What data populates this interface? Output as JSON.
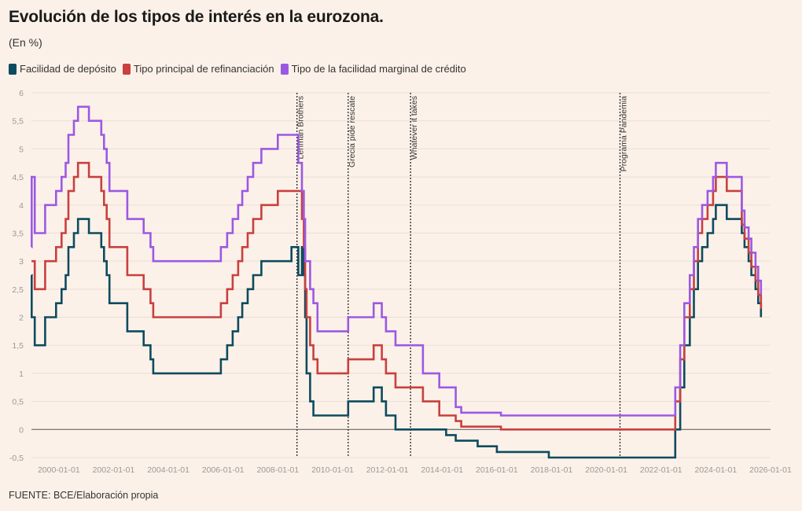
{
  "chart_data": {
    "type": "line",
    "step": true,
    "title": "Evolución de los tipos de interés en la eurozona.",
    "subtitle": "(En %)",
    "source": "FUENTE: BCE/Elaboración propia",
    "xlabel": "",
    "ylabel": "",
    "xlim": [
      1999.0,
      2026.0
    ],
    "ylim": [
      -0.5,
      6
    ],
    "yticks": [
      -0.5,
      0,
      0.5,
      1,
      1.5,
      2,
      2.5,
      3,
      3.5,
      4,
      4.5,
      5,
      5.5,
      6
    ],
    "ytick_labels": [
      "-0,5",
      "0",
      "0,5",
      "1",
      "1,5",
      "2",
      "2,5",
      "3",
      "3,5",
      "4",
      "4,5",
      "5",
      "5,5",
      "6"
    ],
    "xticks": [
      2000,
      2002,
      2004,
      2006,
      2008,
      2010,
      2012,
      2014,
      2016,
      2018,
      2020,
      2022,
      2024,
      2026
    ],
    "xtick_labels": [
      "2000-01-01",
      "2002-01-01",
      "2004-01-01",
      "2006-01-01",
      "2008-01-01",
      "2010-01-01",
      "2012-01-01",
      "2014-01-01",
      "2016-01-01",
      "2018-01-01",
      "2020-01-01",
      "2022-01-01",
      "2024-01-01",
      "2026-01-01"
    ],
    "annotations": [
      {
        "x": 2008.7,
        "label": "Lehman Brothers"
      },
      {
        "x": 2010.57,
        "label": "Grecia pide rescate"
      },
      {
        "x": 2012.85,
        "label": "Whatever it takes"
      },
      {
        "x": 2020.5,
        "label": "Programa Pandemia"
      }
    ],
    "series": [
      {
        "name": "Facilidad de depósito",
        "color": "#0d4b5f",
        "points": [
          [
            1999.0,
            2.75
          ],
          [
            1999.01,
            2.0
          ],
          [
            1999.12,
            1.5
          ],
          [
            1999.5,
            2.0
          ],
          [
            1999.9,
            2.25
          ],
          [
            2000.1,
            2.5
          ],
          [
            2000.25,
            2.75
          ],
          [
            2000.35,
            3.25
          ],
          [
            2000.55,
            3.5
          ],
          [
            2000.7,
            3.75
          ],
          [
            2001.1,
            3.5
          ],
          [
            2001.55,
            3.25
          ],
          [
            2001.65,
            3.0
          ],
          [
            2001.75,
            2.75
          ],
          [
            2001.85,
            2.25
          ],
          [
            2002.5,
            1.75
          ],
          [
            2003.1,
            1.5
          ],
          [
            2003.35,
            1.25
          ],
          [
            2003.45,
            1.0
          ],
          [
            2005.92,
            1.25
          ],
          [
            2006.15,
            1.5
          ],
          [
            2006.35,
            1.75
          ],
          [
            2006.55,
            2.0
          ],
          [
            2006.7,
            2.25
          ],
          [
            2006.9,
            2.5
          ],
          [
            2007.1,
            2.75
          ],
          [
            2007.4,
            3.0
          ],
          [
            2008.5,
            3.25
          ],
          [
            2008.75,
            2.75
          ],
          [
            2008.88,
            3.25
          ],
          [
            2008.95,
            2.75
          ],
          [
            2009.0,
            2.0
          ],
          [
            2009.05,
            1.0
          ],
          [
            2009.18,
            0.5
          ],
          [
            2009.3,
            0.25
          ],
          [
            2010.57,
            0.5
          ],
          [
            2011.5,
            0.75
          ],
          [
            2011.8,
            0.5
          ],
          [
            2011.95,
            0.25
          ],
          [
            2012.3,
            0.0
          ],
          [
            2014.15,
            -0.1
          ],
          [
            2014.5,
            -0.2
          ],
          [
            2015.3,
            -0.3
          ],
          [
            2016.0,
            -0.4
          ],
          [
            2017.9,
            -0.5
          ],
          [
            2021.0,
            -0.5
          ],
          [
            2022.52,
            0.0
          ],
          [
            2022.7,
            0.75
          ],
          [
            2022.85,
            1.5
          ],
          [
            2023.05,
            2.0
          ],
          [
            2023.2,
            2.5
          ],
          [
            2023.35,
            3.0
          ],
          [
            2023.5,
            3.25
          ],
          [
            2023.7,
            3.5
          ],
          [
            2023.9,
            3.75
          ],
          [
            2024.0,
            4.0
          ],
          [
            2024.4,
            3.75
          ],
          [
            2024.95,
            3.5
          ],
          [
            2025.05,
            3.25
          ],
          [
            2025.2,
            3.0
          ],
          [
            2025.3,
            2.75
          ],
          [
            2025.45,
            2.5
          ],
          [
            2025.55,
            2.25
          ],
          [
            2025.65,
            2.0
          ]
        ]
      },
      {
        "name": "Tipo principal de refinanciación",
        "color": "#c8403f",
        "points": [
          [
            1999.0,
            3.0
          ],
          [
            1999.12,
            2.5
          ],
          [
            1999.5,
            3.0
          ],
          [
            1999.9,
            3.25
          ],
          [
            2000.1,
            3.5
          ],
          [
            2000.25,
            3.75
          ],
          [
            2000.35,
            4.25
          ],
          [
            2000.55,
            4.5
          ],
          [
            2000.7,
            4.75
          ],
          [
            2001.1,
            4.5
          ],
          [
            2001.55,
            4.25
          ],
          [
            2001.65,
            4.0
          ],
          [
            2001.75,
            3.75
          ],
          [
            2001.85,
            3.25
          ],
          [
            2002.5,
            2.75
          ],
          [
            2003.1,
            2.5
          ],
          [
            2003.35,
            2.25
          ],
          [
            2003.45,
            2.0
          ],
          [
            2005.92,
            2.25
          ],
          [
            2006.15,
            2.5
          ],
          [
            2006.35,
            2.75
          ],
          [
            2006.55,
            3.0
          ],
          [
            2006.7,
            3.25
          ],
          [
            2006.9,
            3.5
          ],
          [
            2007.1,
            3.75
          ],
          [
            2007.4,
            4.0
          ],
          [
            2008.0,
            4.25
          ],
          [
            2008.88,
            3.75
          ],
          [
            2008.95,
            3.25
          ],
          [
            2009.0,
            2.5
          ],
          [
            2009.05,
            2.0
          ],
          [
            2009.18,
            1.5
          ],
          [
            2009.3,
            1.25
          ],
          [
            2009.45,
            1.0
          ],
          [
            2010.57,
            1.25
          ],
          [
            2011.5,
            1.5
          ],
          [
            2011.8,
            1.25
          ],
          [
            2011.95,
            1.0
          ],
          [
            2012.3,
            0.75
          ],
          [
            2013.3,
            0.5
          ],
          [
            2013.9,
            0.25
          ],
          [
            2014.5,
            0.15
          ],
          [
            2014.7,
            0.05
          ],
          [
            2016.15,
            0.0
          ],
          [
            2021.0,
            0.0
          ],
          [
            2022.52,
            0.5
          ],
          [
            2022.7,
            1.25
          ],
          [
            2022.85,
            2.0
          ],
          [
            2023.05,
            2.5
          ],
          [
            2023.2,
            3.0
          ],
          [
            2023.35,
            3.5
          ],
          [
            2023.5,
            3.75
          ],
          [
            2023.7,
            4.0
          ],
          [
            2023.9,
            4.25
          ],
          [
            2024.0,
            4.5
          ],
          [
            2024.4,
            4.25
          ],
          [
            2024.95,
            3.65
          ],
          [
            2025.05,
            3.4
          ],
          [
            2025.2,
            3.15
          ],
          [
            2025.3,
            2.9
          ],
          [
            2025.45,
            2.65
          ],
          [
            2025.55,
            2.4
          ],
          [
            2025.65,
            2.15
          ]
        ]
      },
      {
        "name": "Tipo de la facilidad marginal de crédito",
        "color": "#9b59e3",
        "points": [
          [
            1999.0,
            3.25
          ],
          [
            1999.01,
            4.5
          ],
          [
            1999.12,
            3.5
          ],
          [
            1999.5,
            4.0
          ],
          [
            1999.9,
            4.25
          ],
          [
            2000.1,
            4.5
          ],
          [
            2000.25,
            4.75
          ],
          [
            2000.35,
            5.25
          ],
          [
            2000.55,
            5.5
          ],
          [
            2000.7,
            5.75
          ],
          [
            2001.1,
            5.5
          ],
          [
            2001.55,
            5.25
          ],
          [
            2001.65,
            5.0
          ],
          [
            2001.75,
            4.75
          ],
          [
            2001.85,
            4.25
          ],
          [
            2002.5,
            3.75
          ],
          [
            2003.1,
            3.5
          ],
          [
            2003.35,
            3.25
          ],
          [
            2003.45,
            3.0
          ],
          [
            2005.92,
            3.25
          ],
          [
            2006.15,
            3.5
          ],
          [
            2006.35,
            3.75
          ],
          [
            2006.55,
            4.0
          ],
          [
            2006.7,
            4.25
          ],
          [
            2006.9,
            4.5
          ],
          [
            2007.1,
            4.75
          ],
          [
            2007.4,
            5.0
          ],
          [
            2008.0,
            5.25
          ],
          [
            2008.75,
            4.75
          ],
          [
            2008.88,
            4.25
          ],
          [
            2008.95,
            3.75
          ],
          [
            2009.0,
            3.0
          ],
          [
            2009.18,
            2.5
          ],
          [
            2009.3,
            2.25
          ],
          [
            2009.45,
            1.75
          ],
          [
            2010.57,
            2.0
          ],
          [
            2011.5,
            2.25
          ],
          [
            2011.8,
            2.0
          ],
          [
            2011.95,
            1.75
          ],
          [
            2012.3,
            1.5
          ],
          [
            2013.3,
            1.0
          ],
          [
            2013.9,
            0.75
          ],
          [
            2014.5,
            0.4
          ],
          [
            2014.7,
            0.3
          ],
          [
            2016.15,
            0.25
          ],
          [
            2021.0,
            0.25
          ],
          [
            2022.52,
            0.75
          ],
          [
            2022.7,
            1.5
          ],
          [
            2022.85,
            2.25
          ],
          [
            2023.05,
            2.75
          ],
          [
            2023.2,
            3.25
          ],
          [
            2023.35,
            3.75
          ],
          [
            2023.5,
            4.0
          ],
          [
            2023.7,
            4.25
          ],
          [
            2023.9,
            4.5
          ],
          [
            2024.0,
            4.75
          ],
          [
            2024.4,
            4.5
          ],
          [
            2024.95,
            3.9
          ],
          [
            2025.05,
            3.6
          ],
          [
            2025.2,
            3.4
          ],
          [
            2025.3,
            3.15
          ],
          [
            2025.45,
            2.9
          ],
          [
            2025.55,
            2.65
          ],
          [
            2025.65,
            2.4
          ]
        ]
      }
    ]
  }
}
